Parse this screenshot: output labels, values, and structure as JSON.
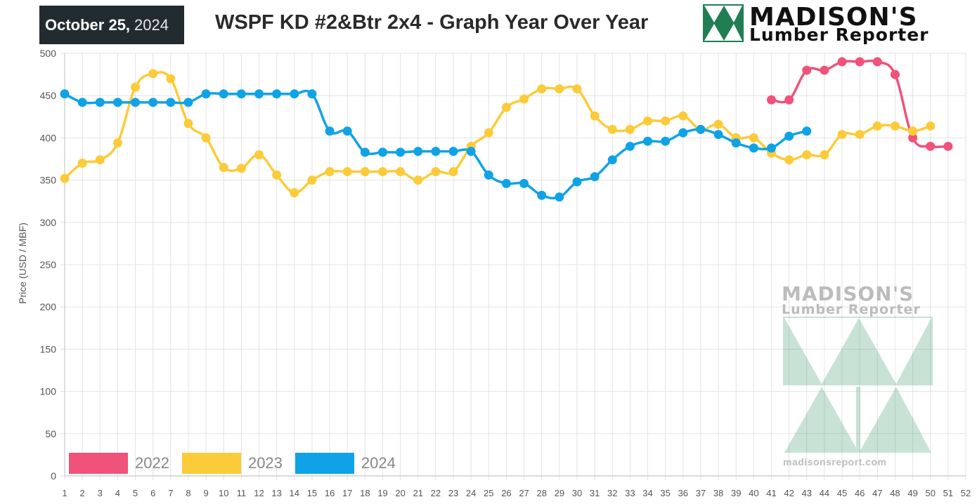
{
  "header": {
    "date_bold": "October 25,",
    "date_year": "2024",
    "title": "WSPF KD #2&Btr 2x4 - Graph Year Over Year",
    "logo_line1": "MADISON'S",
    "logo_line2": "Lumber Reporter"
  },
  "watermark": {
    "line1": "MADISON'S",
    "line2": "Lumber Reporter",
    "url": "madisonsreport.com"
  },
  "colors": {
    "2022": "#f0527a",
    "2023": "#fccb3a",
    "2024": "#0fa3e6",
    "logo_green": "#1f7f52",
    "grid": "#e3e3e3"
  },
  "chart_data": {
    "type": "line",
    "title": "WSPF KD #2&Btr 2x4 - Graph Year Over Year",
    "xlabel": "",
    "ylabel": "Price (USD / MBF)",
    "x": [
      1,
      2,
      3,
      4,
      5,
      6,
      7,
      8,
      9,
      10,
      11,
      12,
      13,
      14,
      15,
      16,
      17,
      18,
      19,
      20,
      21,
      22,
      23,
      24,
      25,
      26,
      27,
      28,
      29,
      30,
      31,
      32,
      33,
      34,
      35,
      36,
      37,
      38,
      39,
      40,
      41,
      42,
      43,
      44,
      45,
      46,
      47,
      48,
      49,
      50,
      51,
      52
    ],
    "ylim": [
      0,
      500
    ],
    "yticks": [
      0,
      50,
      100,
      150,
      200,
      250,
      300,
      350,
      400,
      450,
      500
    ],
    "grid": true,
    "legend_position": "bottom-left",
    "series": [
      {
        "name": "2022",
        "x": [
          41,
          42,
          43,
          44,
          45,
          46,
          47,
          48,
          49,
          50,
          51
        ],
        "values": [
          445,
          445,
          480,
          480,
          490,
          490,
          490,
          475,
          400,
          390,
          390
        ]
      },
      {
        "name": "2023",
        "x": [
          1,
          2,
          3,
          4,
          5,
          6,
          7,
          8,
          9,
          10,
          11,
          12,
          13,
          14,
          15,
          16,
          17,
          18,
          19,
          20,
          21,
          22,
          23,
          24,
          25,
          26,
          27,
          28,
          29,
          30,
          31,
          32,
          33,
          34,
          35,
          36,
          37,
          38,
          39,
          40,
          41,
          42,
          43,
          44,
          45,
          46,
          47,
          48,
          49,
          50
        ],
        "values": [
          352,
          370,
          374,
          394,
          460,
          476,
          470,
          417,
          400,
          365,
          364,
          380,
          356,
          335,
          350,
          360,
          360,
          360,
          360,
          360,
          350,
          360,
          360,
          390,
          406,
          436,
          446,
          458,
          458,
          458,
          426,
          410,
          410,
          420,
          420,
          426,
          410,
          416,
          400,
          400,
          382,
          374,
          380,
          380,
          404,
          404,
          414,
          414,
          408,
          414
        ]
      },
      {
        "name": "2024",
        "x": [
          1,
          2,
          3,
          4,
          5,
          6,
          7,
          8,
          9,
          10,
          11,
          12,
          13,
          14,
          15,
          16,
          17,
          18,
          19,
          20,
          21,
          22,
          23,
          24,
          25,
          26,
          27,
          28,
          29,
          30,
          31,
          32,
          33,
          34,
          35,
          36,
          37,
          38,
          39,
          40,
          41,
          42,
          43
        ],
        "values": [
          452,
          442,
          442,
          442,
          442,
          442,
          442,
          442,
          452,
          452,
          452,
          452,
          452,
          452,
          452,
          408,
          408,
          383,
          383,
          383,
          384,
          384,
          384,
          384,
          356,
          346,
          346,
          332,
          330,
          348,
          354,
          374,
          390,
          396,
          396,
          406,
          410,
          404,
          394,
          388,
          388,
          402,
          408
        ]
      }
    ]
  }
}
